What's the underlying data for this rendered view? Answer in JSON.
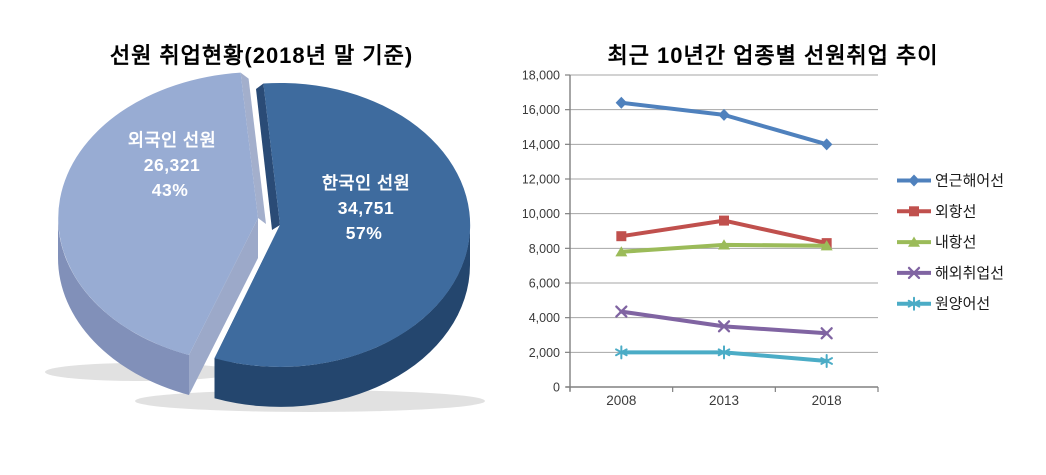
{
  "chart_data": [
    {
      "type": "pie",
      "title": "선원 취업현황(2018년 말 기준)",
      "labels": [
        "한국인 선원",
        "외국인 선원"
      ],
      "values": [
        34751,
        26321
      ],
      "display_values": [
        "34,751",
        "26,321"
      ],
      "percents": [
        "57%",
        "43%"
      ],
      "colors": [
        "#3E6B9E",
        "#98ACD3"
      ],
      "style": "3d-exploded",
      "legend_position": "none"
    },
    {
      "type": "line",
      "title": "최근 10년간 업종별 선원취업 추이",
      "categories": [
        "2008",
        "2013",
        "2018"
      ],
      "series": [
        {
          "name": "연근해어선",
          "values": [
            16400,
            15700,
            14000
          ],
          "color": "#4F81BD",
          "marker": "diamond"
        },
        {
          "name": "외항선",
          "values": [
            8700,
            9600,
            8300
          ],
          "color": "#C0504D",
          "marker": "square"
        },
        {
          "name": "내항선",
          "values": [
            7800,
            8200,
            8150
          ],
          "color": "#9BBB59",
          "marker": "triangle"
        },
        {
          "name": "해외취업선",
          "values": [
            4350,
            3500,
            3100
          ],
          "color": "#8064A2",
          "marker": "x"
        },
        {
          "name": "원양어선",
          "values": [
            2000,
            2000,
            1500
          ],
          "color": "#4BACC6",
          "marker": "asterisk"
        }
      ],
      "ylim": [
        0,
        18000
      ],
      "ytick_step": 2000,
      "yticks": [
        "0",
        "2,000",
        "4,000",
        "6,000",
        "8,000",
        "10,000",
        "12,000",
        "14,000",
        "16,000",
        "18,000"
      ],
      "grid": true,
      "legend_position": "right"
    }
  ]
}
